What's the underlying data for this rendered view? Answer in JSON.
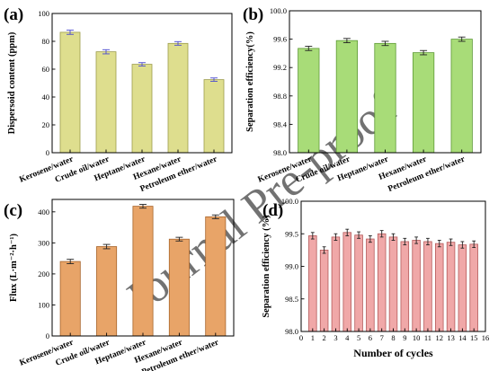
{
  "watermark": "Journal Pre-proof",
  "chart_data": [
    {
      "id": "a",
      "panel_label": "(a)",
      "type": "bar",
      "ylabel": "Dispersoid content (ppm)",
      "xlabel": "",
      "ylim": [
        0,
        100
      ],
      "yticks": [
        0,
        20,
        40,
        60,
        80,
        100
      ],
      "ytick_labels": [
        "0",
        "20",
        "40",
        "60",
        "80",
        "100"
      ],
      "categories": [
        "Kerosene/water",
        "Crude oil/water",
        "Heptane/water",
        "Hexane/water",
        "Petroleum ether/water"
      ],
      "values": [
        86.5,
        72.5,
        63.5,
        78.5,
        52.5
      ],
      "errors": [
        1.5,
        1.5,
        1.2,
        1.3,
        1.2
      ],
      "bar_color": "#dede8e",
      "edge_color": "#9c9c4c",
      "error_color": "#4a4ad0"
    },
    {
      "id": "b",
      "panel_label": "(b)",
      "type": "bar",
      "ylabel": "Separation efficiency(%)",
      "xlabel": "",
      "ylim": [
        98.0,
        100.0
      ],
      "yticks": [
        98.0,
        98.4,
        98.8,
        99.2,
        99.6,
        100.0
      ],
      "ytick_labels": [
        "98.0",
        "98.4",
        "98.8",
        "99.2",
        "99.6",
        "100.0"
      ],
      "categories": [
        "Kerosene/water",
        "Crude oil/water",
        "Heptane/water",
        "Hexane/water",
        "Petroleum ether/water"
      ],
      "values": [
        99.47,
        99.58,
        99.54,
        99.41,
        99.6
      ],
      "errors": [
        0.03,
        0.03,
        0.03,
        0.03,
        0.03
      ],
      "bar_color": "#a8dc78",
      "edge_color": "#5e9a36",
      "error_color": "#222222"
    },
    {
      "id": "c",
      "panel_label": "(c)",
      "type": "bar",
      "ylabel": "Flux (L·m⁻²·h⁻¹)",
      "xlabel": "",
      "ylim": [
        0,
        440
      ],
      "yticks": [
        0,
        100,
        200,
        300,
        400
      ],
      "ytick_labels": [
        "0",
        "100",
        "200",
        "300",
        "400"
      ],
      "categories": [
        "Kerosene/water",
        "Crude oil/water",
        "Heptane/water",
        "Hexane/water",
        "Petroleum ether/water"
      ],
      "values": [
        240,
        288,
        418,
        312,
        384
      ],
      "errors": [
        7,
        7,
        6,
        6,
        6
      ],
      "bar_color": "#e8a468",
      "edge_color": "#a8642a",
      "error_color": "#222222"
    },
    {
      "id": "d",
      "panel_label": "(d)",
      "type": "bar",
      "ylabel": "Separation efficiency (%)",
      "xlabel": "Number of cycles",
      "ylim": [
        98.0,
        100.0
      ],
      "yticks": [
        98.0,
        98.5,
        99.0,
        99.5,
        100.0
      ],
      "ytick_labels": [
        "98.0",
        "98.5",
        "99.0",
        "99.5",
        "100.0"
      ],
      "xlim": [
        0,
        16
      ],
      "xticks": [
        0,
        1,
        2,
        3,
        4,
        5,
        6,
        7,
        8,
        9,
        10,
        11,
        12,
        13,
        14,
        15,
        16
      ],
      "xtick_labels": [
        "0",
        "1",
        "2",
        "3",
        "4",
        "5",
        "6",
        "7",
        "8",
        "9",
        "10",
        "11",
        "12",
        "13",
        "14",
        "15",
        "16"
      ],
      "x": [
        1,
        2,
        3,
        4,
        5,
        6,
        7,
        8,
        9,
        10,
        11,
        12,
        13,
        14,
        15
      ],
      "values": [
        99.47,
        99.25,
        99.45,
        99.52,
        99.48,
        99.42,
        99.5,
        99.45,
        99.38,
        99.4,
        99.38,
        99.35,
        99.37,
        99.33,
        99.34
      ],
      "errors": [
        0.05,
        0.05,
        0.05,
        0.05,
        0.05,
        0.05,
        0.05,
        0.05,
        0.05,
        0.05,
        0.05,
        0.05,
        0.05,
        0.05,
        0.05
      ],
      "bar_color": "#f0a8a8",
      "edge_color": "#b45a5a",
      "error_color": "#222222"
    }
  ]
}
